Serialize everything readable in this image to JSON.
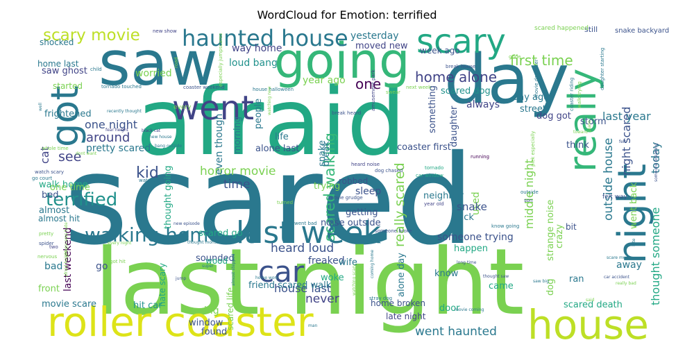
{
  "chart_data": {
    "type": "wordcloud",
    "title": "WordCloud for Emotion: terrified",
    "colormap": "viridis",
    "background": "#ffffff",
    "words": [
      {
        "text": "scared",
        "weight": 1.0,
        "color": "#2a788e"
      },
      {
        "text": "afraid",
        "weight": 0.74,
        "color": "#22a884"
      },
      {
        "text": "last night",
        "weight": 0.72,
        "color": "#7ad151"
      },
      {
        "text": "saw",
        "weight": 0.52,
        "color": "#2a788e"
      },
      {
        "text": "day",
        "weight": 0.5,
        "color": "#2a788e"
      },
      {
        "text": "roller coaster",
        "weight": 0.42,
        "color": "#dde318"
      },
      {
        "text": "going",
        "weight": 0.38,
        "color": "#35b779"
      },
      {
        "text": "house",
        "weight": 0.36,
        "color": "#bddf26"
      },
      {
        "text": "went",
        "weight": 0.3,
        "color": "#414487"
      },
      {
        "text": "scary",
        "weight": 0.3,
        "color": "#22a884"
      },
      {
        "text": "got",
        "weight": 0.3,
        "color": "#2a788e"
      },
      {
        "text": "really",
        "weight": 0.3,
        "color": "#35b779"
      },
      {
        "text": "night",
        "weight": 0.3,
        "color": "#2a788e"
      },
      {
        "text": "last week",
        "weight": 0.26,
        "color": "#2a788e"
      },
      {
        "text": "car",
        "weight": 0.26,
        "color": "#3b528b"
      },
      {
        "text": "haunted house",
        "weight": 0.2,
        "color": "#2a788e"
      },
      {
        "text": "walking home",
        "weight": 0.18,
        "color": "#2a788e"
      },
      {
        "text": "scary movie",
        "weight": 0.16,
        "color": "#bddf26"
      },
      {
        "text": "terrified",
        "weight": 0.15,
        "color": "#21918c"
      },
      {
        "text": "one",
        "weight": 0.14,
        "color": "#440154"
      },
      {
        "text": "home alone",
        "weight": 0.13,
        "color": "#414487"
      },
      {
        "text": "first time",
        "weight": 0.13,
        "color": "#7ad151"
      },
      {
        "text": "scared walking",
        "weight": 0.13,
        "color": "#35b779"
      },
      {
        "text": "really scared",
        "weight": 0.12,
        "color": "#7ad151"
      },
      {
        "text": "outside house",
        "weight": 0.11,
        "color": "#2a788e"
      },
      {
        "text": "kid",
        "weight": 0.12,
        "color": "#3b528b"
      },
      {
        "text": "horror movie",
        "weight": 0.11,
        "color": "#7ad151"
      },
      {
        "text": "time",
        "weight": 0.11,
        "color": "#3b528b"
      },
      {
        "text": "see",
        "weight": 0.11,
        "color": "#414487"
      },
      {
        "text": "cat",
        "weight": 0.1,
        "color": "#414487"
      },
      {
        "text": "around",
        "weight": 0.11,
        "color": "#414487"
      },
      {
        "text": "one night",
        "weight": 0.1,
        "color": "#3b528b"
      },
      {
        "text": "night scared",
        "weight": 0.1,
        "color": "#3b528b"
      },
      {
        "text": "heard loud",
        "weight": 0.1,
        "color": "#3b528b"
      },
      {
        "text": "house last",
        "weight": 0.1,
        "color": "#3b528b"
      },
      {
        "text": "went haunted",
        "weight": 0.1,
        "color": "#2a788e"
      },
      {
        "text": "never",
        "weight": 0.1,
        "color": "#414487"
      },
      {
        "text": "today",
        "weight": 0.1,
        "color": "#2a788e"
      },
      {
        "text": "last year",
        "weight": 0.09,
        "color": "#2a788e"
      },
      {
        "text": "thought someone",
        "weight": 0.09,
        "color": "#22a884"
      },
      {
        "text": "middle night",
        "weight": 0.09,
        "color": "#7ad151"
      },
      {
        "text": "saw ghost",
        "weight": 0.08,
        "color": "#414487"
      },
      {
        "text": "yesterday",
        "weight": 0.08,
        "color": "#2a788e"
      },
      {
        "text": "moved new",
        "weight": 0.08,
        "color": "#414487"
      },
      {
        "text": "loud bang",
        "weight": 0.08,
        "color": "#21918c"
      },
      {
        "text": "way home",
        "weight": 0.08,
        "color": "#414487"
      },
      {
        "text": "worried",
        "weight": 0.08,
        "color": "#7ad151"
      },
      {
        "text": "year ago",
        "weight": 0.08,
        "color": "#7ad151"
      },
      {
        "text": "week ago",
        "weight": 0.07,
        "color": "#3b528b"
      },
      {
        "text": "scared dog",
        "weight": 0.07,
        "color": "#21918c"
      },
      {
        "text": "always",
        "weight": 0.08,
        "color": "#414487"
      },
      {
        "text": "home last",
        "weight": 0.08,
        "color": "#2a788e"
      },
      {
        "text": "shocked",
        "weight": 0.07,
        "color": "#2a788e"
      },
      {
        "text": "started",
        "weight": 0.07,
        "color": "#7ad151"
      },
      {
        "text": "frightened",
        "weight": 0.08,
        "color": "#2a788e"
      },
      {
        "text": "pretty scared",
        "weight": 0.08,
        "color": "#2a788e"
      },
      {
        "text": "walk home",
        "weight": 0.07,
        "color": "#22a884"
      },
      {
        "text": "bed",
        "weight": 0.07,
        "color": "#3b528b"
      },
      {
        "text": "one time",
        "weight": 0.08,
        "color": "#7ad151"
      },
      {
        "text": "almost",
        "weight": 0.08,
        "color": "#2a788e"
      },
      {
        "text": "almost hit",
        "weight": 0.07,
        "color": "#2a788e"
      },
      {
        "text": "last weekend",
        "weight": 0.08,
        "color": "#440154"
      },
      {
        "text": "bad",
        "weight": 0.09,
        "color": "#2a788e"
      },
      {
        "text": "go",
        "weight": 0.09,
        "color": "#3b528b"
      },
      {
        "text": "front",
        "weight": 0.08,
        "color": "#7ad151"
      },
      {
        "text": "movie scare",
        "weight": 0.08,
        "color": "#2a788e"
      },
      {
        "text": "hit car",
        "weight": 0.08,
        "color": "#21918c"
      },
      {
        "text": "big",
        "weight": 0.09,
        "color": "#7ad151"
      },
      {
        "text": "window",
        "weight": 0.08,
        "color": "#3b528b"
      },
      {
        "text": "found",
        "weight": 0.08,
        "color": "#3b528b"
      },
      {
        "text": "thought going",
        "weight": 0.08,
        "color": "#22a884"
      },
      {
        "text": "scared go",
        "weight": 0.08,
        "color": "#22a884"
      },
      {
        "text": "sounded",
        "weight": 0.08,
        "color": "#3b528b"
      },
      {
        "text": "wood",
        "weight": 0.08,
        "color": "#22a884"
      },
      {
        "text": "hate scary",
        "weight": 0.07,
        "color": "#22a884"
      },
      {
        "text": "scared life",
        "weight": 0.07,
        "color": "#7ad151"
      },
      {
        "text": "friend scared walk",
        "weight": 0.07,
        "color": "#2a788e"
      },
      {
        "text": "noise outside",
        "weight": 0.08,
        "color": "#3b528b"
      },
      {
        "text": "freaked",
        "weight": 0.08,
        "color": "#3b528b"
      },
      {
        "text": "woke",
        "weight": 0.07,
        "color": "#22a884"
      },
      {
        "text": "wife",
        "weight": 0.07,
        "color": "#2a788e"
      },
      {
        "text": "home broken",
        "weight": 0.07,
        "color": "#3b528b"
      },
      {
        "text": "late night",
        "weight": 0.07,
        "color": "#414487"
      },
      {
        "text": "people",
        "weight": 0.08,
        "color": "#2a788e"
      },
      {
        "text": "even though",
        "weight": 0.08,
        "color": "#2a788e"
      },
      {
        "text": "morning",
        "weight": 0.07,
        "color": "#2a788e"
      },
      {
        "text": "life",
        "weight": 0.08,
        "color": "#2a788e"
      },
      {
        "text": "alone last",
        "weight": 0.07,
        "color": "#3b528b"
      },
      {
        "text": "snake",
        "weight": 0.09,
        "color": "#2a788e"
      },
      {
        "text": "trying",
        "weight": 0.08,
        "color": "#7ad151"
      },
      {
        "text": "break",
        "weight": 0.08,
        "color": "#2a788e"
      },
      {
        "text": "robbed",
        "weight": 0.08,
        "color": "#3b528b"
      },
      {
        "text": "sleep",
        "weight": 0.08,
        "color": "#3b528b"
      },
      {
        "text": "getting",
        "weight": 0.08,
        "color": "#3b528b"
      },
      {
        "text": "coaster first",
        "weight": 0.08,
        "color": "#3b528b"
      },
      {
        "text": "neighbor",
        "weight": 0.08,
        "color": "#2a788e"
      },
      {
        "text": "used",
        "weight": 0.08,
        "color": "#7ad151"
      },
      {
        "text": "back",
        "weight": 0.08,
        "color": "#2a788e"
      },
      {
        "text": "snake",
        "weight": 0.09,
        "color": "#3b528b"
      },
      {
        "text": "someone trying",
        "weight": 0.08,
        "color": "#3b528b"
      },
      {
        "text": "happen",
        "weight": 0.07,
        "color": "#22a884"
      },
      {
        "text": "know",
        "weight": 0.07,
        "color": "#2a788e"
      },
      {
        "text": "came",
        "weight": 0.08,
        "color": "#22a884"
      },
      {
        "text": "door",
        "weight": 0.07,
        "color": "#22a884"
      },
      {
        "text": "alone day",
        "weight": 0.07,
        "color": "#2a788e"
      },
      {
        "text": "dog",
        "weight": 0.08,
        "color": "#7ad151"
      },
      {
        "text": "something",
        "weight": 0.07,
        "color": "#3b528b"
      },
      {
        "text": "daughter",
        "weight": 0.08,
        "color": "#3b528b"
      },
      {
        "text": "day ago",
        "weight": 0.08,
        "color": "#2a788e"
      },
      {
        "text": "street",
        "weight": 0.08,
        "color": "#2a788e"
      },
      {
        "text": "dog got",
        "weight": 0.08,
        "color": "#414487"
      },
      {
        "text": "storm",
        "weight": 0.08,
        "color": "#3b528b"
      },
      {
        "text": "think",
        "weight": 0.08,
        "color": "#3b528b"
      },
      {
        "text": "strange noise",
        "weight": 0.07,
        "color": "#7ad151"
      },
      {
        "text": "crazy",
        "weight": 0.08,
        "color": "#7ad151"
      },
      {
        "text": "ran",
        "weight": 0.09,
        "color": "#2a788e"
      },
      {
        "text": "scared death",
        "weight": 0.08,
        "color": "#22a884"
      },
      {
        "text": "went back",
        "weight": 0.08,
        "color": "#7ad151"
      },
      {
        "text": "away",
        "weight": 0.08,
        "color": "#2a788e"
      },
      {
        "text": "bit",
        "weight": 0.07,
        "color": "#3b528b"
      },
      {
        "text": "still",
        "weight": 0.06,
        "color": "#3b528b"
      },
      {
        "text": "snake backyard",
        "weight": 0.05,
        "color": "#3b528b"
      },
      {
        "text": "felt way",
        "weight": 0.05,
        "color": "#3b528b"
      },
      {
        "text": "scared happened",
        "weight": 0.04,
        "color": "#7ad151"
      },
      {
        "text": "new show",
        "weight": 0.04,
        "color": "#414487"
      },
      {
        "text": "break house",
        "weight": 0.04,
        "color": "#3b528b"
      },
      {
        "text": "gone",
        "weight": 0.04,
        "color": "#7ad151"
      },
      {
        "text": "child",
        "weight": 0.04,
        "color": "#2a788e"
      },
      {
        "text": "road",
        "weight": 0.04,
        "color": "#7ad151"
      },
      {
        "text": "tornado touched",
        "weight": 0.04,
        "color": "#2a788e"
      },
      {
        "text": "coaster weekend",
        "weight": 0.04,
        "color": "#3b528b"
      },
      {
        "text": "house halloween",
        "weight": 0.04,
        "color": "#2a788e"
      },
      {
        "text": "especially jumpscares",
        "weight": 0.04,
        "color": "#7ad151"
      },
      {
        "text": "recently thought",
        "weight": 0.04,
        "color": "#2a788e"
      },
      {
        "text": "every",
        "weight": 0.05,
        "color": "#7ad151"
      },
      {
        "text": "fear height",
        "weight": 0.04,
        "color": "#414487"
      },
      {
        "text": "black cat",
        "weight": 0.04,
        "color": "#414487"
      },
      {
        "text": "new house",
        "weight": 0.04,
        "color": "#2a788e"
      },
      {
        "text": "bang outside",
        "weight": 0.04,
        "color": "#2a788e"
      },
      {
        "text": "watching new",
        "weight": 0.04,
        "color": "#7ad151"
      },
      {
        "text": "break heard",
        "weight": 0.04,
        "color": "#3b528b"
      },
      {
        "text": "amusement park",
        "weight": 0.04,
        "color": "#414487"
      },
      {
        "text": "next week",
        "weight": 0.04,
        "color": "#7ad151"
      },
      {
        "text": "swear",
        "weight": 0.04,
        "color": "#7ad151"
      },
      {
        "text": "movie daughter",
        "weight": 0.04,
        "color": "#2a788e"
      },
      {
        "text": "daughter starting",
        "weight": 0.04,
        "color": "#2a788e"
      },
      {
        "text": "coaster riding",
        "weight": 0.04,
        "color": "#2a788e"
      },
      {
        "text": "walk trying",
        "weight": 0.04,
        "color": "#7ad151"
      },
      {
        "text": "whole time",
        "weight": 0.04,
        "color": "#7ad151"
      },
      {
        "text": "dont want",
        "weight": 0.04,
        "color": "#7ad151"
      },
      {
        "text": "watch scary",
        "weight": 0.04,
        "color": "#3b528b"
      },
      {
        "text": "go court",
        "weight": 0.04,
        "color": "#2a788e"
      },
      {
        "text": "watched",
        "weight": 0.04,
        "color": "#2a788e"
      },
      {
        "text": "heard noise",
        "weight": 0.04,
        "color": "#414487"
      },
      {
        "text": "running",
        "weight": 0.04,
        "color": "#440154"
      },
      {
        "text": "toward",
        "weight": 0.04,
        "color": "#7ad151"
      },
      {
        "text": "plane",
        "weight": 0.04,
        "color": "#7ad151"
      },
      {
        "text": "felt",
        "weight": 0.04,
        "color": "#3b528b"
      },
      {
        "text": "dog chased",
        "weight": 0.04,
        "color": "#3b528b"
      },
      {
        "text": "tornado",
        "weight": 0.04,
        "color": "#22a884"
      },
      {
        "text": "car window",
        "weight": 0.04,
        "color": "#22a884"
      },
      {
        "text": "pick especially",
        "weight": 0.04,
        "color": "#7ad151"
      },
      {
        "text": "someone breaking",
        "weight": 0.04,
        "color": "#3b528b"
      },
      {
        "text": "movie grudge",
        "weight": 0.04,
        "color": "#3b528b"
      },
      {
        "text": "turned",
        "weight": 0.04,
        "color": "#7ad151"
      },
      {
        "text": "outside",
        "weight": 0.04,
        "color": "#2a788e"
      },
      {
        "text": "son",
        "weight": 0.04,
        "color": "#3b528b"
      },
      {
        "text": "year old",
        "weight": 0.04,
        "color": "#414487"
      },
      {
        "text": "new episode",
        "weight": 0.04,
        "color": "#3b528b"
      },
      {
        "text": "went bad",
        "weight": 0.04,
        "color": "#2a788e"
      },
      {
        "text": "someone broke",
        "weight": 0.04,
        "color": "#3b528b"
      },
      {
        "text": "know going",
        "weight": 0.04,
        "color": "#2a788e"
      },
      {
        "text": "pretty",
        "weight": 0.04,
        "color": "#7ad151"
      },
      {
        "text": "spider",
        "weight": 0.04,
        "color": "#3b528b"
      },
      {
        "text": "jumpscares hate",
        "weight": 0.04,
        "color": "#7ad151"
      },
      {
        "text": "afraid height",
        "weight": 0.04,
        "color": "#7ad151"
      },
      {
        "text": "every night",
        "weight": 0.04,
        "color": "#7ad151"
      },
      {
        "text": "thought monster",
        "weight": 0.04,
        "color": "#2a788e"
      },
      {
        "text": "two",
        "weight": 0.04,
        "color": "#414487"
      },
      {
        "text": "nervous",
        "weight": 0.04,
        "color": "#7ad151"
      },
      {
        "text": "got hit",
        "weight": 0.04,
        "color": "#7ad151"
      },
      {
        "text": "super",
        "weight": 0.04,
        "color": "#2a788e"
      },
      {
        "text": "jump",
        "weight": 0.04,
        "color": "#3b528b"
      },
      {
        "text": "home work",
        "weight": 0.04,
        "color": "#2a788e"
      },
      {
        "text": "almost stepped",
        "weight": 0.04,
        "color": "#2a788e"
      },
      {
        "text": "watching scary",
        "weight": 0.04,
        "color": "#7ad151"
      },
      {
        "text": "stray dog",
        "weight": 0.04,
        "color": "#2a788e"
      },
      {
        "text": "coming home",
        "weight": 0.04,
        "color": "#2a788e"
      },
      {
        "text": "long time",
        "weight": 0.04,
        "color": "#3b528b"
      },
      {
        "text": "thought saw",
        "weight": 0.04,
        "color": "#3b528b"
      },
      {
        "text": "saw big",
        "weight": 0.04,
        "color": "#2a788e"
      },
      {
        "text": "movie coming",
        "weight": 0.04,
        "color": "#2a788e"
      },
      {
        "text": "car accident",
        "weight": 0.04,
        "color": "#3b528b"
      },
      {
        "text": "really bad",
        "weight": 0.04,
        "color": "#7ad151"
      },
      {
        "text": "scare much",
        "weight": 0.04,
        "color": "#2a788e"
      },
      {
        "text": "said",
        "weight": 0.04,
        "color": "#7ad151"
      },
      {
        "text": "man",
        "weight": 0.04,
        "color": "#2a788e"
      },
      {
        "text": "well",
        "weight": 0.04,
        "color": "#2a788e"
      },
      {
        "text": "late",
        "weight": 0.04,
        "color": "#2a788e"
      }
    ]
  }
}
